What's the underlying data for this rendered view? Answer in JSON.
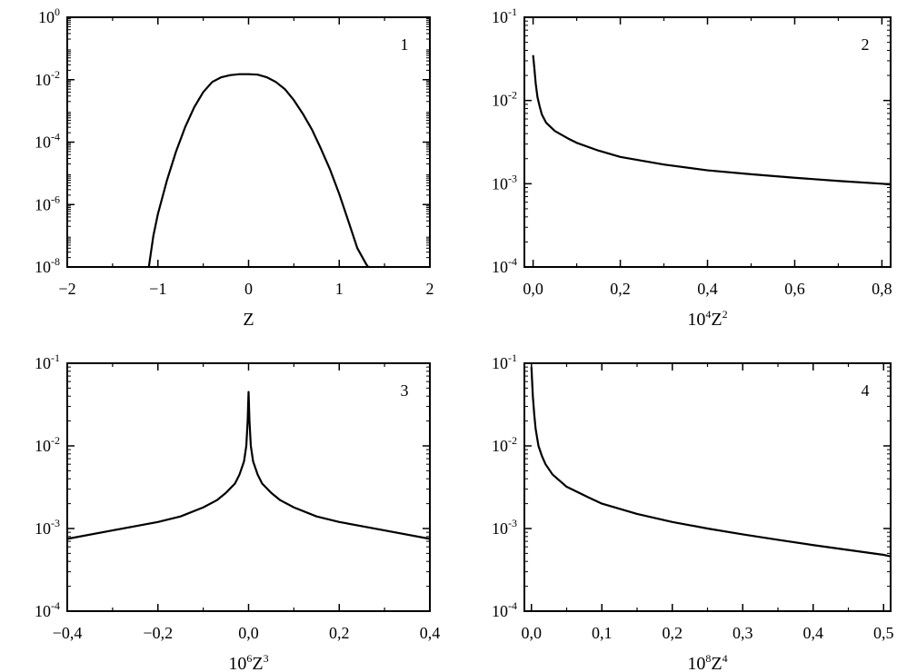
{
  "chart_data": [
    {
      "type": "line",
      "panel_label": "1",
      "xlabel": "Z",
      "xlabel_base": "Z",
      "xlabel_prefix": "",
      "xlabel_exp": "",
      "ylabel": "",
      "yscale": "log",
      "xlim": [
        -2,
        2
      ],
      "ylim_exp": [
        -8,
        0
      ],
      "xticks": [
        -2,
        -1,
        0,
        1,
        2
      ],
      "xtick_labels": [
        "−2",
        "−1",
        "0",
        "1",
        "2"
      ],
      "ytick_exps": [
        -8,
        -6,
        -4,
        -2,
        0
      ],
      "ytick_labels": [
        "10-8",
        "10-6",
        "10-4",
        "10-2",
        "100"
      ],
      "series": [
        {
          "x": [
            -1.1,
            -1.05,
            -1.0,
            -0.9,
            -0.8,
            -0.7,
            -0.6,
            -0.5,
            -0.4,
            -0.3,
            -0.2,
            -0.1,
            0.0,
            0.1,
            0.2,
            0.3,
            0.4,
            0.5,
            0.6,
            0.7,
            0.8,
            0.9,
            1.0,
            1.1,
            1.2,
            1.3,
            1.32
          ],
          "y": [
            1e-08,
            1e-07,
            5e-07,
            6e-06,
            5e-05,
            0.0003,
            0.0013,
            0.004,
            0.0085,
            0.012,
            0.014,
            0.015,
            0.015,
            0.0145,
            0.012,
            0.0085,
            0.005,
            0.0022,
            0.0008,
            0.00025,
            6e-05,
            1.3e-05,
            2.2e-06,
            3e-07,
            4e-08,
            1.2e-08,
            1e-08
          ]
        }
      ]
    },
    {
      "type": "line",
      "panel_label": "2",
      "xlabel": "10⁴Z²",
      "xlabel_prefix": "10",
      "xlabel_exp": "4",
      "xlabel_base": "Z",
      "xlabel_exp2": "2",
      "ylabel": "",
      "yscale": "log",
      "xlim": [
        -0.02,
        0.82
      ],
      "ylim_exp": [
        -4,
        -1
      ],
      "xticks": [
        0,
        0.2,
        0.4,
        0.6,
        0.8
      ],
      "xtick_labels": [
        "0,0",
        "0,2",
        "0,4",
        "0,6",
        "0,8"
      ],
      "ytick_exps": [
        -4,
        -3,
        -2,
        -1
      ],
      "ytick_labels": [
        "10-4",
        "10-3",
        "10-2",
        "10-1"
      ],
      "series": [
        {
          "x": [
            0.0,
            0.003,
            0.006,
            0.01,
            0.015,
            0.02,
            0.03,
            0.05,
            0.08,
            0.1,
            0.15,
            0.2,
            0.3,
            0.4,
            0.5,
            0.6,
            0.7,
            0.8,
            0.82
          ],
          "y": [
            0.035,
            0.024,
            0.016,
            0.011,
            0.0085,
            0.0068,
            0.0054,
            0.0043,
            0.0035,
            0.0031,
            0.0025,
            0.0021,
            0.0017,
            0.00145,
            0.0013,
            0.00118,
            0.00108,
            0.001,
            0.00098
          ]
        }
      ]
    },
    {
      "type": "line",
      "panel_label": "3",
      "xlabel": "10⁶Z³",
      "xlabel_prefix": "10",
      "xlabel_exp": "6",
      "xlabel_base": "Z",
      "xlabel_exp2": "3",
      "ylabel": "",
      "yscale": "log",
      "xlim": [
        -0.4,
        0.4
      ],
      "ylim_exp": [
        -4,
        -1
      ],
      "xticks": [
        -0.4,
        -0.2,
        0.0,
        0.2,
        0.4
      ],
      "xtick_labels": [
        "−0,4",
        "−0,2",
        "0,0",
        "0,2",
        "0,4"
      ],
      "ytick_exps": [
        -4,
        -3,
        -2,
        -1
      ],
      "ytick_labels": [
        "10-4",
        "10-3",
        "10-2",
        "10-1"
      ],
      "series": [
        {
          "x": [
            -0.4,
            -0.3,
            -0.2,
            -0.15,
            -0.1,
            -0.07,
            -0.05,
            -0.03,
            -0.02,
            -0.01,
            -0.005,
            -0.002,
            0.0,
            0.002,
            0.005,
            0.01,
            0.02,
            0.03,
            0.05,
            0.07,
            0.1,
            0.15,
            0.2,
            0.3,
            0.4
          ],
          "y": [
            0.00075,
            0.00095,
            0.0012,
            0.0014,
            0.0018,
            0.0022,
            0.0027,
            0.0035,
            0.0045,
            0.0065,
            0.01,
            0.02,
            0.045,
            0.02,
            0.01,
            0.0065,
            0.0045,
            0.0035,
            0.0027,
            0.0022,
            0.0018,
            0.0014,
            0.0012,
            0.00095,
            0.00075
          ]
        }
      ]
    },
    {
      "type": "line",
      "panel_label": "4",
      "xlabel": "10⁸Z⁴",
      "xlabel_prefix": "10",
      "xlabel_exp": "8",
      "xlabel_base": "Z",
      "xlabel_exp2": "4",
      "ylabel": "",
      "yscale": "log",
      "xlim": [
        -0.01,
        0.51
      ],
      "ylim_exp": [
        -4,
        -1
      ],
      "xticks": [
        0.0,
        0.1,
        0.2,
        0.3,
        0.4,
        0.5
      ],
      "xtick_labels": [
        "0,0",
        "0,1",
        "0,2",
        "0,3",
        "0,4",
        "0,5"
      ],
      "ytick_exps": [
        -4,
        -3,
        -2,
        -1
      ],
      "ytick_labels": [
        "10-4",
        "10-3",
        "10-2",
        "10-1"
      ],
      "series": [
        {
          "x": [
            0.0,
            0.001,
            0.002,
            0.004,
            0.006,
            0.01,
            0.015,
            0.02,
            0.03,
            0.05,
            0.08,
            0.1,
            0.15,
            0.2,
            0.25,
            0.3,
            0.35,
            0.4,
            0.45,
            0.5,
            0.51
          ],
          "y": [
            0.09,
            0.06,
            0.04,
            0.024,
            0.016,
            0.01,
            0.0075,
            0.006,
            0.0045,
            0.0032,
            0.0024,
            0.002,
            0.0015,
            0.0012,
            0.001,
            0.00085,
            0.00073,
            0.00063,
            0.00055,
            0.00048,
            0.00046
          ]
        }
      ]
    }
  ]
}
